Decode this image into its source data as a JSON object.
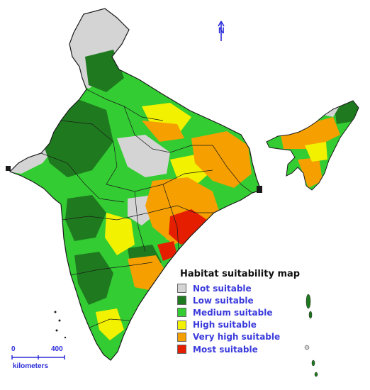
{
  "legend": {
    "title": "Habitat suitability map",
    "items": [
      {
        "label": "Not suitable",
        "color": "#d4d4d4"
      },
      {
        "label": "Low suitable",
        "color": "#1f7a1f"
      },
      {
        "label": "Medium suitable",
        "color": "#33cc33"
      },
      {
        "label": "High suitable",
        "color": "#f2f200"
      },
      {
        "label": "Very high suitable",
        "color": "#f5a000"
      },
      {
        "label": "Most suitable",
        "color": "#e61e00"
      }
    ]
  },
  "north_arrow": {
    "letter": "N"
  },
  "scale_bar": {
    "start": "0",
    "end": "400",
    "unit": "kilometers"
  },
  "colors": {
    "boundary": "#1a1a1a",
    "text_accent": "#2b2bd9"
  }
}
